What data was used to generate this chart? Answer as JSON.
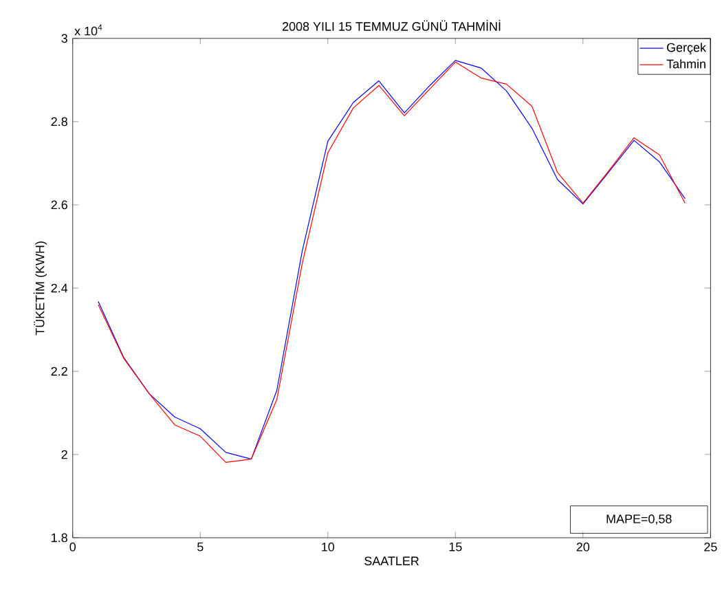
{
  "chart_data": {
    "type": "line",
    "title": "2008 YILI 15 TEMMUZ GÜNÜ TAHMİNİ",
    "xlabel": "SAATLER",
    "ylabel": "TÜKETİM (KWH)",
    "annotations": [
      "x 10$^{4}$",
      "MAPE=0,58"
    ],
    "x": [
      1,
      2,
      3,
      4,
      5,
      6,
      7,
      8,
      9,
      10,
      11,
      12,
      13,
      14,
      15,
      16,
      17,
      18,
      19,
      20,
      21,
      22,
      23,
      24
    ],
    "series": [
      {
        "name": "Gerçek",
        "color": "#0000ff",
        "values": [
          2.368,
          2.233,
          2.146,
          2.09,
          2.062,
          2.005,
          1.989,
          2.154,
          2.49,
          2.753,
          2.846,
          2.898,
          2.821,
          2.887,
          2.947,
          2.929,
          2.874,
          2.784,
          2.661,
          2.602,
          2.678,
          2.755,
          2.703,
          2.615
        ]
      },
      {
        "name": "Tahmin",
        "color": "#ff0000",
        "values": [
          2.36,
          2.231,
          2.146,
          2.071,
          2.044,
          1.981,
          1.989,
          2.132,
          2.46,
          2.725,
          2.833,
          2.887,
          2.814,
          2.879,
          2.943,
          2.905,
          2.89,
          2.837,
          2.678,
          2.604,
          2.681,
          2.761,
          2.72,
          2.604
        ]
      }
    ],
    "xlim": [
      0,
      25
    ],
    "ylim": [
      1.8,
      3
    ],
    "xticks": [
      0,
      5,
      10,
      15,
      20,
      25
    ],
    "yticks": [
      1.8,
      2,
      2.2,
      2.4,
      2.6,
      2.8,
      3
    ],
    "legend": "top right",
    "grid": false
  }
}
